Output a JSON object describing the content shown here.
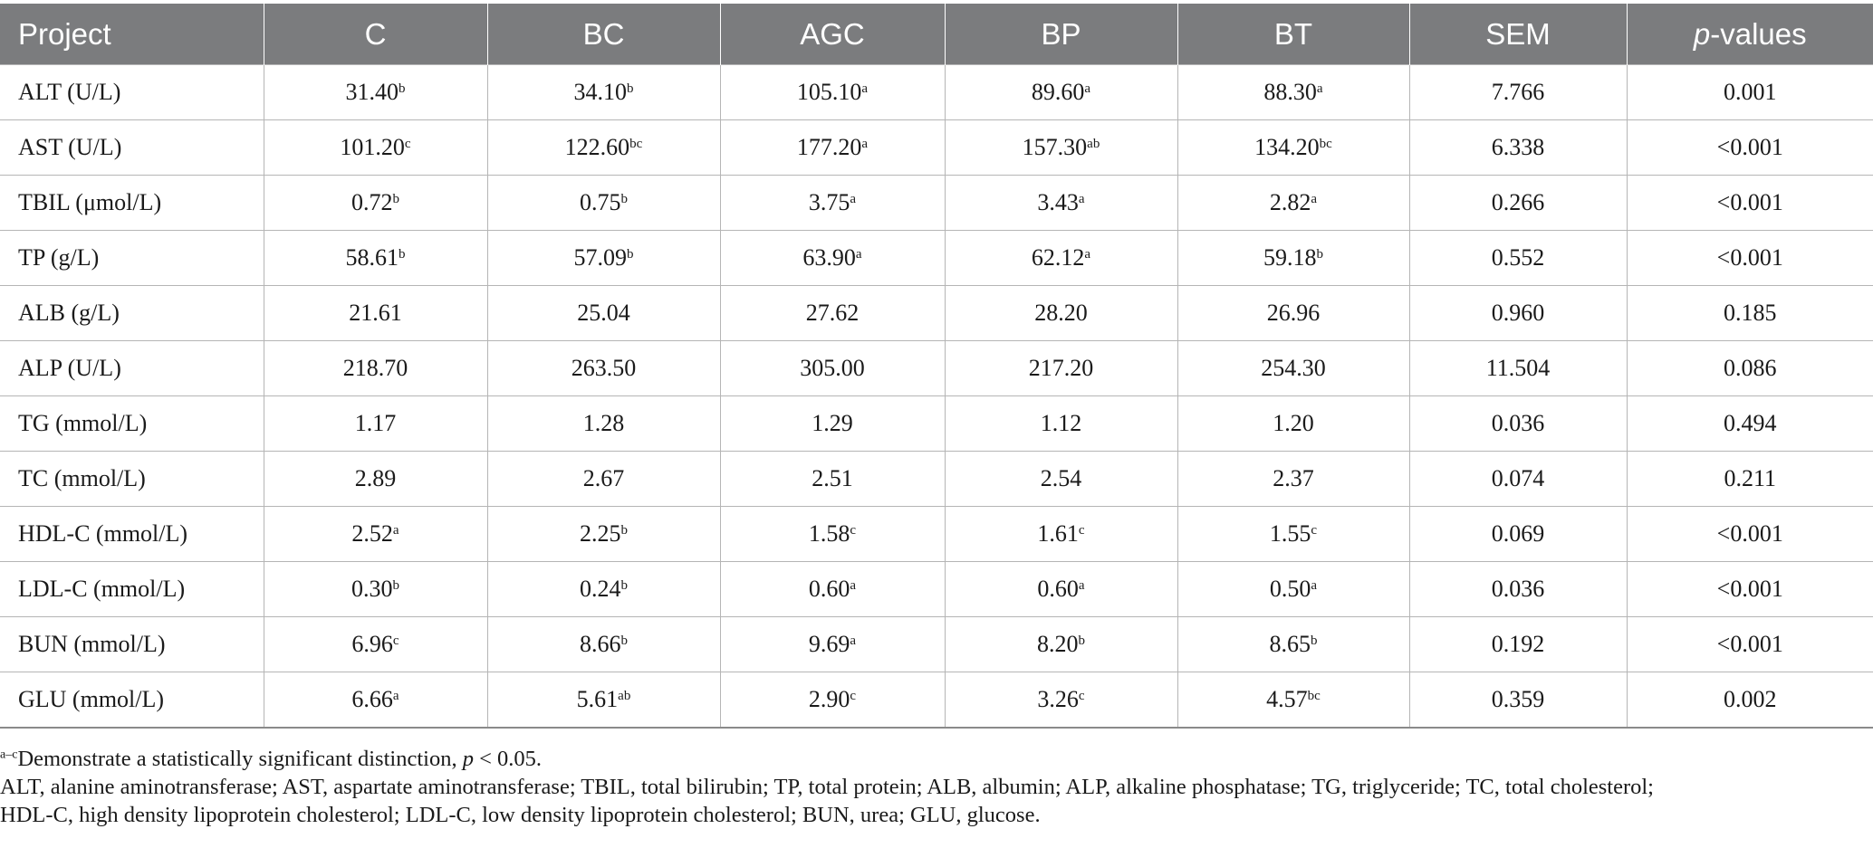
{
  "table": {
    "header": {
      "project": "Project",
      "groups": [
        "C",
        "BC",
        "AGC",
        "BP",
        "BT"
      ],
      "sem": "SEM",
      "p_italic": "p",
      "p_rest": "-values"
    },
    "rows": [
      {
        "label": "ALT (U/L)",
        "cells": [
          {
            "v": "31.40",
            "s": "b"
          },
          {
            "v": "34.10",
            "s": "b"
          },
          {
            "v": "105.10",
            "s": "a"
          },
          {
            "v": "89.60",
            "s": "a"
          },
          {
            "v": "88.30",
            "s": "a"
          }
        ],
        "sem": "7.766",
        "p": "0.001"
      },
      {
        "label": "AST (U/L)",
        "cells": [
          {
            "v": "101.20",
            "s": "c"
          },
          {
            "v": "122.60",
            "s": "bc"
          },
          {
            "v": "177.20",
            "s": "a"
          },
          {
            "v": "157.30",
            "s": "ab"
          },
          {
            "v": "134.20",
            "s": "bc"
          }
        ],
        "sem": "6.338",
        "p": "<0.001"
      },
      {
        "label": "TBIL (μmol/L)",
        "cells": [
          {
            "v": "0.72",
            "s": "b"
          },
          {
            "v": "0.75",
            "s": "b"
          },
          {
            "v": "3.75",
            "s": "a"
          },
          {
            "v": "3.43",
            "s": "a"
          },
          {
            "v": "2.82",
            "s": "a"
          }
        ],
        "sem": "0.266",
        "p": "<0.001"
      },
      {
        "label": "TP (g/L)",
        "cells": [
          {
            "v": "58.61",
            "s": "b"
          },
          {
            "v": "57.09",
            "s": "b"
          },
          {
            "v": "63.90",
            "s": "a"
          },
          {
            "v": "62.12",
            "s": "a"
          },
          {
            "v": "59.18",
            "s": "b"
          }
        ],
        "sem": "0.552",
        "p": "<0.001"
      },
      {
        "label": "ALB (g/L)",
        "cells": [
          {
            "v": "21.61",
            "s": ""
          },
          {
            "v": "25.04",
            "s": ""
          },
          {
            "v": "27.62",
            "s": ""
          },
          {
            "v": "28.20",
            "s": ""
          },
          {
            "v": "26.96",
            "s": ""
          }
        ],
        "sem": "0.960",
        "p": "0.185"
      },
      {
        "label": "ALP (U/L)",
        "cells": [
          {
            "v": "218.70",
            "s": ""
          },
          {
            "v": "263.50",
            "s": ""
          },
          {
            "v": "305.00",
            "s": ""
          },
          {
            "v": "217.20",
            "s": ""
          },
          {
            "v": "254.30",
            "s": ""
          }
        ],
        "sem": "11.504",
        "p": "0.086"
      },
      {
        "label": "TG (mmol/L)",
        "cells": [
          {
            "v": "1.17",
            "s": ""
          },
          {
            "v": "1.28",
            "s": ""
          },
          {
            "v": "1.29",
            "s": ""
          },
          {
            "v": "1.12",
            "s": ""
          },
          {
            "v": "1.20",
            "s": ""
          }
        ],
        "sem": "0.036",
        "p": "0.494"
      },
      {
        "label": "TC (mmol/L)",
        "cells": [
          {
            "v": "2.89",
            "s": ""
          },
          {
            "v": "2.67",
            "s": ""
          },
          {
            "v": "2.51",
            "s": ""
          },
          {
            "v": "2.54",
            "s": ""
          },
          {
            "v": "2.37",
            "s": ""
          }
        ],
        "sem": "0.074",
        "p": "0.211"
      },
      {
        "label": "HDL-C (mmol/L)",
        "cells": [
          {
            "v": "2.52",
            "s": "a"
          },
          {
            "v": "2.25",
            "s": "b"
          },
          {
            "v": "1.58",
            "s": "c"
          },
          {
            "v": "1.61",
            "s": "c"
          },
          {
            "v": "1.55",
            "s": "c"
          }
        ],
        "sem": "0.069",
        "p": "<0.001"
      },
      {
        "label": "LDL-C (mmol/L)",
        "cells": [
          {
            "v": "0.30",
            "s": "b"
          },
          {
            "v": "0.24",
            "s": "b"
          },
          {
            "v": "0.60",
            "s": "a"
          },
          {
            "v": "0.60",
            "s": "a"
          },
          {
            "v": "0.50",
            "s": "a"
          }
        ],
        "sem": "0.036",
        "p": "<0.001"
      },
      {
        "label": "BUN (mmol/L)",
        "cells": [
          {
            "v": "6.96",
            "s": "c"
          },
          {
            "v": "8.66",
            "s": "b"
          },
          {
            "v": "9.69",
            "s": "a"
          },
          {
            "v": "8.20",
            "s": "b"
          },
          {
            "v": "8.65",
            "s": "b"
          }
        ],
        "sem": "0.192",
        "p": "<0.001"
      },
      {
        "label": "GLU (mmol/L)",
        "cells": [
          {
            "v": "6.66",
            "s": "a"
          },
          {
            "v": "5.61",
            "s": "ab"
          },
          {
            "v": "2.90",
            "s": "c"
          },
          {
            "v": "3.26",
            "s": "c"
          },
          {
            "v": "4.57",
            "s": "bc"
          }
        ],
        "sem": "0.359",
        "p": "0.002"
      }
    ]
  },
  "footnotes": {
    "sig_sup": "a–c",
    "sig_text": "Demonstrate a statistically significant distinction, ",
    "sig_p": "p",
    "sig_tail": " < 0.05.",
    "abbrev_line1": "ALT, alanine aminotransferase; AST, aspartate aminotransferase; TBIL, total bilirubin; TP, total protein; ALB, albumin; ALP, alkaline phosphatase; TG, triglyceride; TC, total cholesterol;",
    "abbrev_line2": "HDL-C, high density lipoprotein cholesterol; LDL-C, low density lipoprotein cholesterol; BUN, urea; GLU, glucose."
  }
}
